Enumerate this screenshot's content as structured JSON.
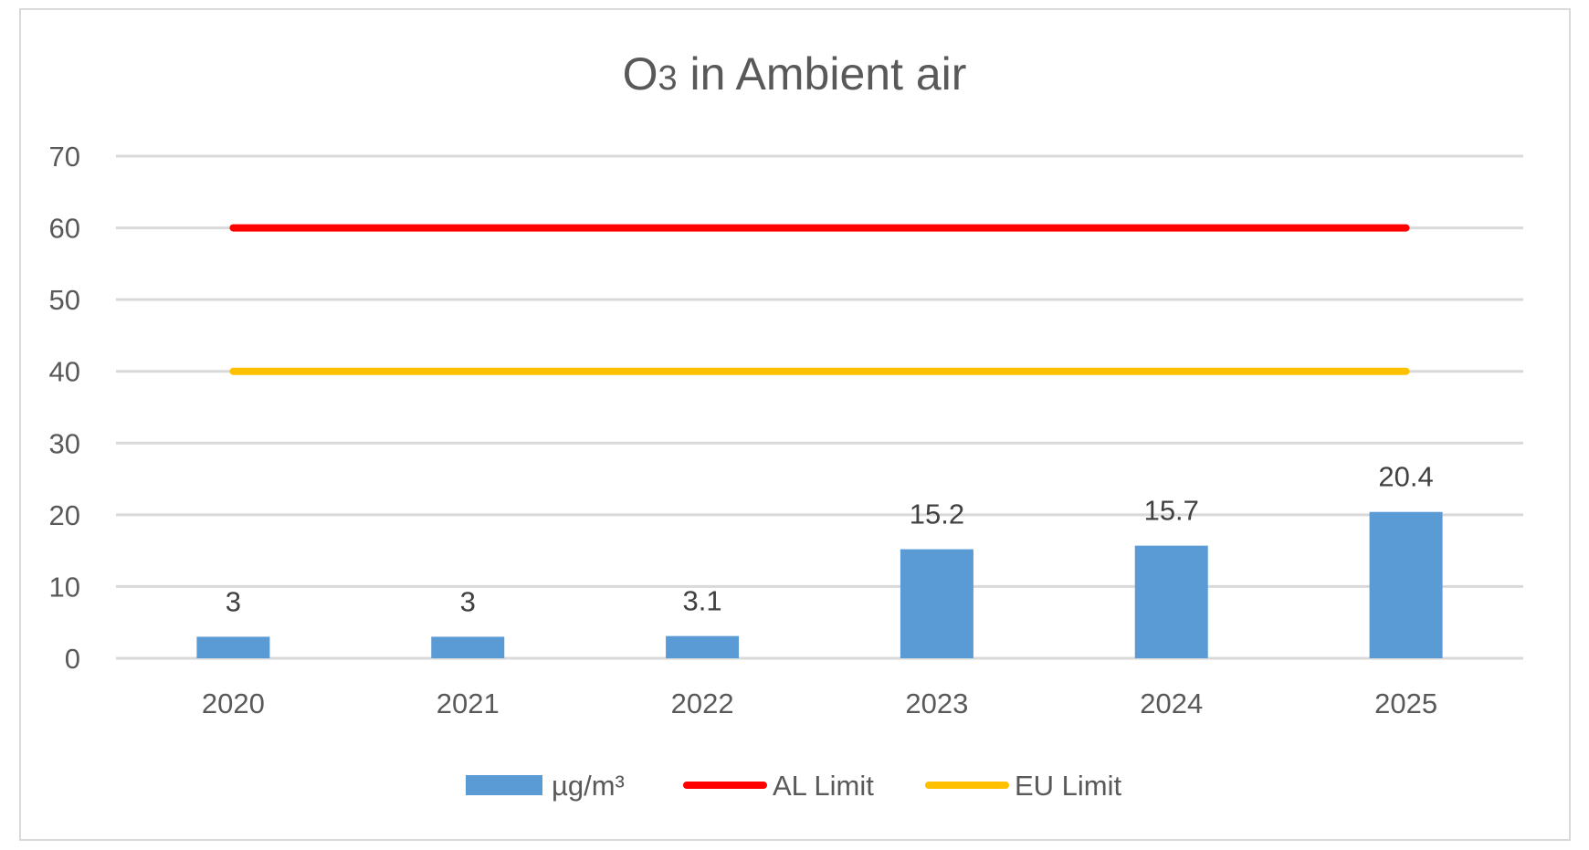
{
  "chart_data": {
    "type": "bar",
    "title": {
      "main": "O",
      "subscript": "3",
      "rest": " in Ambient air"
    },
    "categories": [
      "2020",
      "2021",
      "2022",
      "2023",
      "2024",
      "2025"
    ],
    "series": [
      {
        "name": "µg/m³",
        "kind": "bar",
        "color": "#5b9bd5",
        "values": [
          3,
          3,
          3.1,
          15.2,
          15.7,
          20.4
        ],
        "data_labels": [
          "3",
          "3",
          "3.1",
          "15.2",
          "15.7",
          "20.4"
        ]
      },
      {
        "name": "AL Limit",
        "kind": "line",
        "color": "#ff0000",
        "values": [
          60,
          60,
          60,
          60,
          60,
          60
        ]
      },
      {
        "name": "EU Limit",
        "kind": "line",
        "color": "#ffc000",
        "values": [
          40,
          40,
          40,
          40,
          40,
          40
        ]
      }
    ],
    "y_ticks": [
      "0",
      "10",
      "20",
      "30",
      "40",
      "50",
      "60",
      "70"
    ],
    "ylim": [
      0,
      70
    ],
    "xlabel": "",
    "ylabel": "",
    "grid": true,
    "legend_position": "bottom"
  }
}
